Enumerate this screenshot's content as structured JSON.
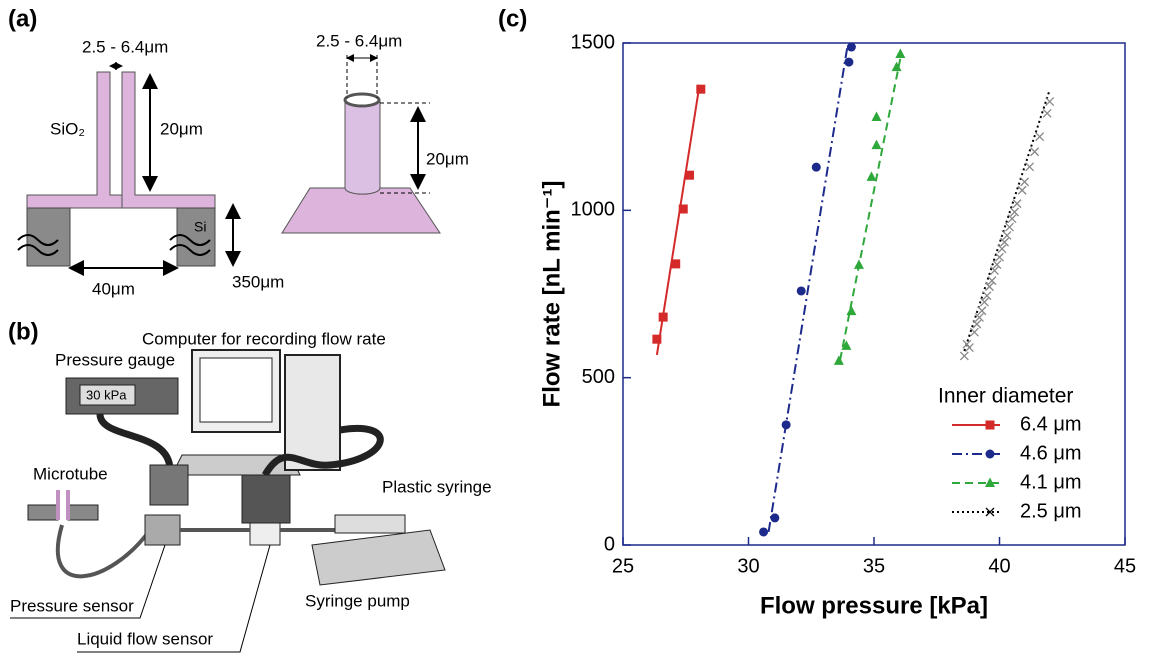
{
  "panel_a": {
    "label": "(a)",
    "gap_width": "2.5 - 6.4μm",
    "material_top": "SiO₂",
    "tube_height": "20μm",
    "material_base": "Si",
    "hole_width": "40μm",
    "base_height": "350μm",
    "gap_width_3d": "2.5 - 6.4μm",
    "tube_height_3d": "20μm"
  },
  "panel_b": {
    "label": "(b)",
    "computer": "Computer for recording flow rate",
    "gauge": "Pressure gauge",
    "gauge_display": "30 kPa",
    "microtube": "Microtube",
    "syringe": "Plastic syringe",
    "pressure_sensor": "Pressure sensor",
    "pump": "Syringe pump",
    "flow_sensor": "Liquid flow sensor"
  },
  "panel_c": {
    "label": "(c)"
  },
  "chart_data": {
    "type": "scatter",
    "x_label": "Flow pressure [kPa]",
    "y_label": "Flow rate [nL min⁻¹]",
    "xlim": [
      25,
      45
    ],
    "xticks": [
      25,
      30,
      35,
      40,
      45
    ],
    "ylim": [
      0,
      1500
    ],
    "yticks": [
      0,
      500,
      1000,
      1500
    ],
    "legend_title": "Inner diameter",
    "legend_position": "lower right",
    "series": [
      {
        "name": "6.4 μm",
        "color": "#d42a2a",
        "marker": "square",
        "linestyle": "solid",
        "x": [
          26.35,
          26.6,
          27.1,
          27.4,
          27.65,
          28.1
        ],
        "values": [
          615,
          681,
          840,
          1004,
          1105,
          1362
        ],
        "line_x": [
          26.35,
          28.05
        ],
        "line_y": [
          568,
          1375
        ]
      },
      {
        "name": "4.6 μm",
        "color": "#1c2a8c",
        "marker": "circle",
        "linestyle": "dashdot",
        "x": [
          30.6,
          31.05,
          31.5,
          32.1,
          32.7,
          34.0,
          34.1
        ],
        "values": [
          39,
          81,
          359,
          759,
          1129,
          1443,
          1488
        ],
        "line_x": [
          30.8,
          33.95
        ],
        "line_y": [
          39,
          1494
        ]
      },
      {
        "name": "4.1 μm",
        "color": "#2ea83a",
        "marker": "triangle",
        "linestyle": "dashed",
        "x": [
          33.6,
          33.9,
          34.1,
          34.4,
          34.9,
          35.1,
          35.1,
          35.9,
          36.05
        ],
        "values": [
          550,
          595,
          699,
          837,
          1100,
          1195,
          1279,
          1428,
          1467
        ],
        "line_x": [
          33.65,
          36.1
        ],
        "line_y": [
          553,
          1473
        ]
      },
      {
        "name": "2.5 μm",
        "color": "#000000",
        "marker": "x",
        "linestyle": "dotted",
        "x": [
          38.6,
          38.7,
          38.8,
          39.0,
          39.1,
          39.2,
          39.3,
          39.4,
          39.5,
          39.6,
          39.7,
          39.8,
          39.9,
          40.0,
          40.1,
          40.2,
          40.3,
          40.4,
          40.5,
          40.6,
          40.7,
          40.9,
          41.0,
          41.2,
          41.4,
          41.6,
          41.9,
          42.0
        ],
        "values": [
          565,
          600,
          590,
          636,
          660,
          680,
          700,
          726,
          745,
          772,
          790,
          820,
          838,
          860,
          885,
          905,
          925,
          950,
          975,
          995,
          1020,
          1060,
          1085,
          1130,
          1175,
          1220,
          1290,
          1325
        ],
        "line_x": [
          38.6,
          42.0
        ],
        "line_y": [
          580,
          1360
        ]
      }
    ]
  }
}
